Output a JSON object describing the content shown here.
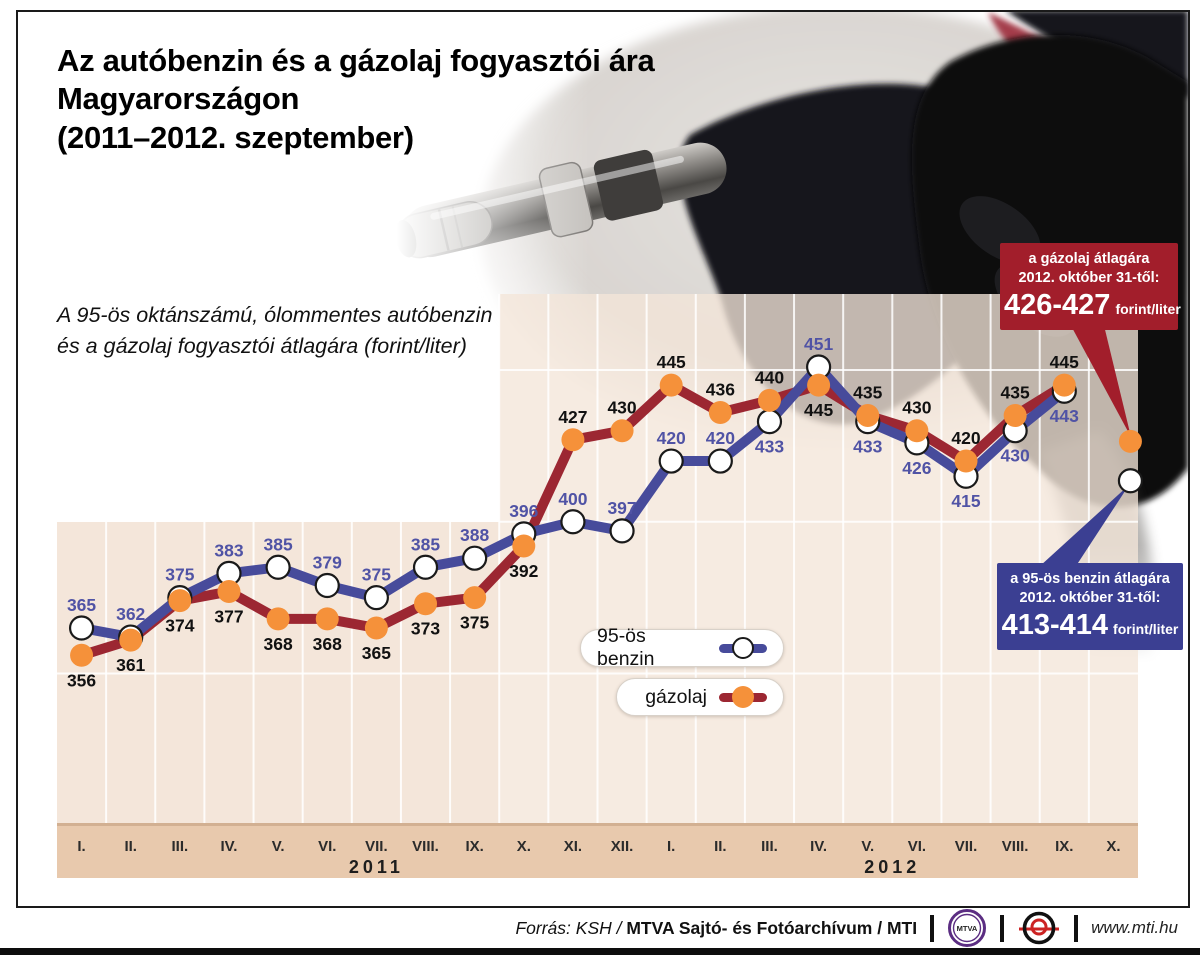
{
  "header": {
    "title_lines": [
      "Az autóbenzin és a gázolaj fogyasztói ára",
      "Magyarországon",
      "(2011–2012. szeptember)"
    ],
    "subtitle_lines": [
      "A 95-ös oktánszámú, ólommentes autóbenzin",
      "és a gázolaj fogyasztói átlagára (forint/liter)"
    ]
  },
  "chart_data": {
    "type": "line",
    "unit": "forint/liter",
    "categories": [
      "I.",
      "II.",
      "III.",
      "IV.",
      "V.",
      "VI.",
      "VII.",
      "VIII.",
      "IX.",
      "X.",
      "XI.",
      "XII.",
      "I.",
      "II.",
      "III.",
      "IV.",
      "V.",
      "VI.",
      "VII.",
      "VIII.",
      "IX.",
      "X."
    ],
    "year_groups": [
      {
        "label": "2011",
        "start": 0,
        "count": 12
      },
      {
        "label": "2012",
        "start": 12,
        "count": 10
      }
    ],
    "ylim": [
      300,
      478
    ],
    "gridline_values": [
      350,
      400,
      450
    ],
    "grid": true,
    "legend_position": "inside-bottom-center",
    "series": [
      {
        "name": "95-ös benzin",
        "color": "#474b9b",
        "marker_fill": "#ffffff",
        "marker_stroke": "#1a1a1a",
        "label_color": "#5053a5",
        "values": [
          365,
          362,
          375,
          383,
          385,
          379,
          375,
          385,
          388,
          396,
          400,
          397,
          420,
          420,
          433,
          451,
          433,
          426,
          415,
          430,
          443
        ],
        "label_side": [
          "a",
          "a",
          "a",
          "a",
          "a",
          "a",
          "a",
          "a",
          "a",
          "a",
          "a",
          "a",
          "a",
          "a",
          "b",
          "a",
          "b",
          "b",
          "b",
          "b",
          "b"
        ]
      },
      {
        "name": "gázolaj",
        "color": "#9c2732",
        "marker_fill": "#f5913a",
        "marker_stroke": "none",
        "label_color": "#111111",
        "values": [
          356,
          361,
          374,
          377,
          368,
          368,
          365,
          373,
          375,
          392,
          427,
          430,
          445,
          436,
          440,
          445,
          435,
          430,
          420,
          435,
          445
        ],
        "label_side": [
          "b",
          "b",
          "b",
          "b",
          "b",
          "b",
          "b",
          "b",
          "b",
          "b",
          "a",
          "a",
          "a",
          "a",
          "a",
          "b",
          "a",
          "a",
          "a",
          "a",
          "a"
        ]
      }
    ],
    "october_points": [
      {
        "series": "gázolaj",
        "month_index": 21,
        "value": 426.5
      },
      {
        "series": "95-ös benzin",
        "month_index": 21,
        "value": 413.5
      }
    ]
  },
  "callouts": {
    "diesel": {
      "line1": "a gázolaj átlagára",
      "line2": "2012. október 31-től:",
      "value": "426-427",
      "unit": "forint/liter",
      "color": "#a21e2b"
    },
    "benzin": {
      "line1": "a 95-ös benzin átlagára",
      "line2": "2012. október 31-től:",
      "value": "413-414",
      "unit": "forint/liter",
      "color": "#3b3f92"
    }
  },
  "legend": [
    {
      "label": "95-ös benzin"
    },
    {
      "label": "gázolaj"
    }
  ],
  "footer": {
    "source_prefix": "Forrás: KSH /",
    "source_bold": "MTVA Sajtó- és Fotóarchívum / MTI",
    "mtva_logo_text": "MTVA",
    "website": "www.mti.hu"
  }
}
